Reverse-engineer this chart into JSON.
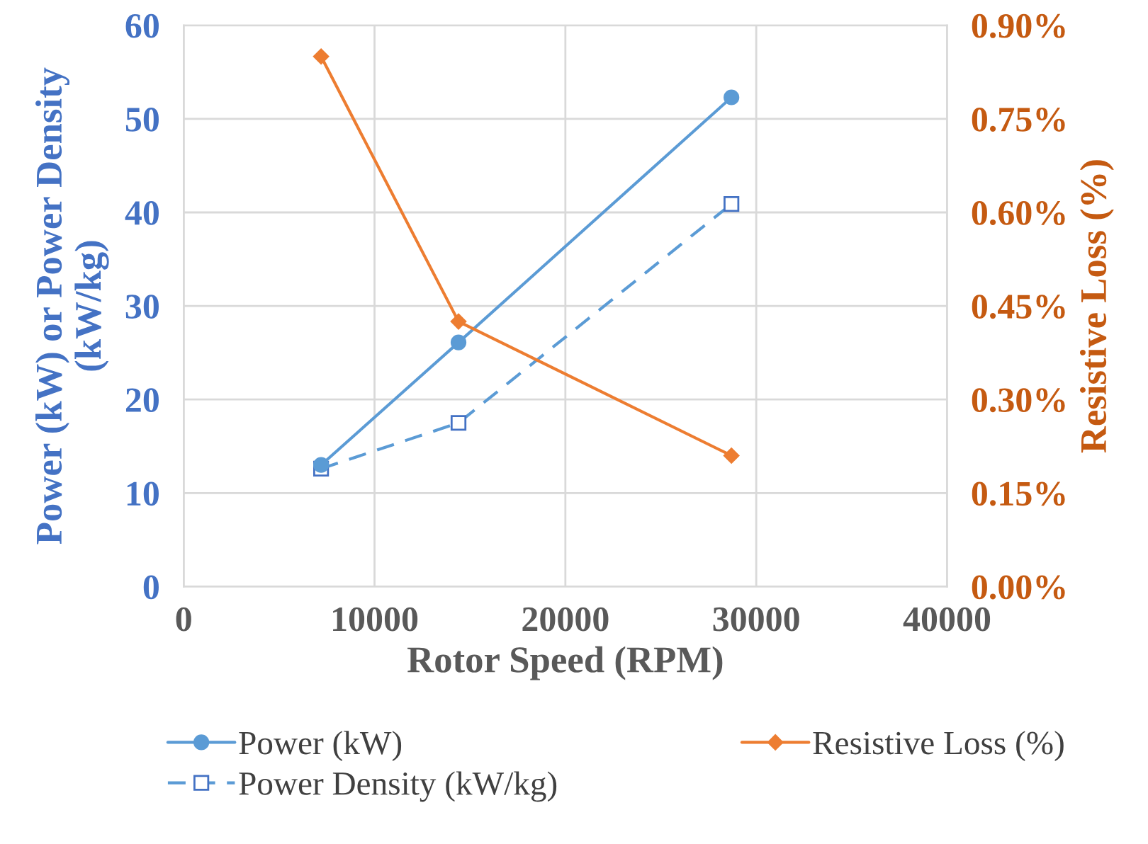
{
  "chart_data": {
    "type": "line",
    "x": [
      7200,
      14400,
      28700
    ],
    "xlabel": "Rotor Speed (RPM)",
    "ylabel": "Power (kW) or Power Density (kW/kg)",
    "y2label": "Resistive Loss (%)",
    "series": [
      {
        "name": "Power (kW)",
        "color": "#5b9bd5",
        "values": [
          13.0,
          26.1,
          52.3
        ],
        "marker": "circle",
        "line_style": "solid"
      },
      {
        "name": "Power Density (kW/kg)",
        "color": "#5b9bd5",
        "values": [
          12.6,
          17.5,
          40.9
        ],
        "marker": "square",
        "line_style": "dashed"
      },
      {
        "name": "Resistive Loss (%)",
        "color": "#ed7d31",
        "values": [
          0.85,
          0.425,
          0.21
        ],
        "marker": "diamond",
        "line_style": "solid",
        "axis": "y2"
      }
    ],
    "xlim": [
      0,
      40000
    ],
    "xticks": [
      0,
      10000,
      20000,
      30000,
      40000
    ],
    "ylim": [
      0,
      60
    ],
    "yticks": [
      0,
      10,
      20,
      30,
      40,
      50,
      60
    ],
    "y2lim": [
      0,
      0.9
    ],
    "y2ticks": [
      {
        "value": 0,
        "label": "0.00%"
      },
      {
        "value": 0.15,
        "label": "0.15%"
      },
      {
        "value": 0.3,
        "label": "0.30%"
      },
      {
        "value": 0.45,
        "label": "0.45%"
      },
      {
        "value": 0.6,
        "label": "0.60%"
      },
      {
        "value": 0.75,
        "label": "0.75%"
      },
      {
        "value": 0.9,
        "label": "0.90%"
      }
    ],
    "grid": true,
    "legend": "bottom"
  }
}
